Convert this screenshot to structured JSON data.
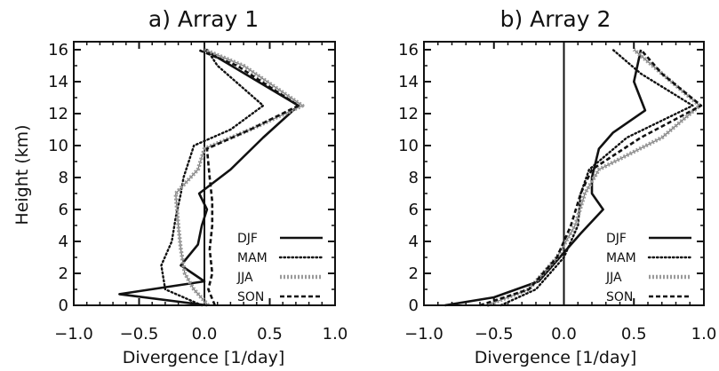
{
  "chart_data": [
    {
      "type": "line",
      "title": "a) Array 1",
      "xlabel": "Divergence [1/day]",
      "ylabel": "Height (km)",
      "xlim": [
        -1.0,
        1.0
      ],
      "ylim": [
        0,
        16.5
      ],
      "xticks": [
        "−1.0",
        "−0.5",
        "0.0",
        "0.5",
        "1.0"
      ],
      "yticks": [
        "0",
        "2",
        "4",
        "6",
        "8",
        "10",
        "12",
        "14",
        "16"
      ],
      "legend": "lower-right",
      "orientation": "vertical-profile",
      "series": [
        {
          "name": "DJF",
          "style": "solid",
          "color": "#111111",
          "x": [
            0.02,
            -0.65,
            0.0,
            -0.18,
            -0.05,
            -0.02,
            0.02,
            -0.04,
            0.2,
            0.45,
            0.72,
            0.0
          ],
          "y": [
            0.0,
            0.7,
            1.5,
            2.5,
            3.8,
            5.0,
            6.0,
            7.0,
            8.5,
            10.5,
            12.5,
            16.0
          ]
        },
        {
          "name": "MAM",
          "style": "dotted",
          "color": "#111111",
          "x": [
            -0.02,
            -0.3,
            -0.33,
            -0.25,
            -0.22,
            -0.18,
            -0.16,
            -0.12,
            -0.08,
            0.2,
            0.45,
            0.1,
            0.02
          ],
          "y": [
            0.0,
            1.0,
            2.5,
            4.0,
            5.5,
            7.0,
            8.0,
            9.0,
            10.0,
            11.0,
            12.5,
            15.0,
            16.0
          ]
        },
        {
          "name": "JJA",
          "style": "dotted-thick",
          "color": "#9a9a9a",
          "x": [
            0.03,
            -0.08,
            -0.15,
            -0.18,
            -0.2,
            -0.22,
            -0.05,
            0.0,
            0.35,
            0.75,
            0.3,
            0.0
          ],
          "y": [
            0.0,
            1.0,
            2.0,
            3.5,
            5.0,
            7.0,
            8.5,
            9.8,
            11.0,
            12.5,
            15.0,
            16.0
          ]
        },
        {
          "name": "SON",
          "style": "dashed",
          "color": "#111111",
          "x": [
            0.08,
            0.03,
            0.06,
            0.04,
            0.06,
            0.06,
            0.04,
            0.02,
            0.35,
            0.72,
            0.25,
            -0.05
          ],
          "y": [
            0.0,
            1.0,
            2.0,
            3.5,
            5.0,
            6.5,
            8.0,
            9.8,
            11.0,
            12.5,
            15.0,
            16.0
          ]
        }
      ]
    },
    {
      "type": "line",
      "title": "b) Array 2",
      "xlabel": "Divergence [1/day]",
      "ylabel": "",
      "xlim": [
        -1.0,
        1.0
      ],
      "ylim": [
        0,
        16.5
      ],
      "xticks": [
        "−1.0",
        "−0.5",
        "0.0",
        "0.5",
        "1.0"
      ],
      "yticks": [
        "0",
        "2",
        "4",
        "6",
        "8",
        "10",
        "12",
        "14",
        "16"
      ],
      "legend": "lower-right",
      "orientation": "vertical-profile",
      "series": [
        {
          "name": "DJF",
          "style": "solid",
          "color": "#111111",
          "x": [
            -0.85,
            -0.5,
            -0.18,
            -0.05,
            0.12,
            0.28,
            0.2,
            0.2,
            0.25,
            0.35,
            0.58,
            0.5,
            0.55
          ],
          "y": [
            0.0,
            0.5,
            1.5,
            2.8,
            4.5,
            6.0,
            7.0,
            8.0,
            9.8,
            10.8,
            12.2,
            14.0,
            16.0
          ]
        },
        {
          "name": "MAM",
          "style": "dotted",
          "color": "#111111",
          "x": [
            -0.45,
            -0.2,
            0.0,
            0.1,
            0.12,
            0.18,
            0.45,
            0.92,
            0.55,
            0.35
          ],
          "y": [
            0.0,
            1.0,
            3.0,
            5.0,
            7.0,
            8.5,
            10.5,
            12.5,
            14.5,
            16.0
          ]
        },
        {
          "name": "JJA",
          "style": "dotted-thick",
          "color": "#9a9a9a",
          "x": [
            -0.55,
            -0.25,
            -0.05,
            0.08,
            0.15,
            0.25,
            0.7,
            0.97,
            0.7,
            0.5
          ],
          "y": [
            0.0,
            1.0,
            3.0,
            5.0,
            7.0,
            8.5,
            10.5,
            12.5,
            14.5,
            16.0
          ]
        },
        {
          "name": "SON",
          "style": "dashed",
          "color": "#111111",
          "x": [
            -0.6,
            -0.25,
            -0.05,
            0.05,
            0.12,
            0.2,
            0.55,
            0.98,
            0.7,
            0.55
          ],
          "y": [
            0.0,
            1.0,
            3.0,
            5.0,
            7.0,
            8.5,
            10.5,
            12.5,
            14.5,
            16.0
          ]
        }
      ]
    }
  ]
}
